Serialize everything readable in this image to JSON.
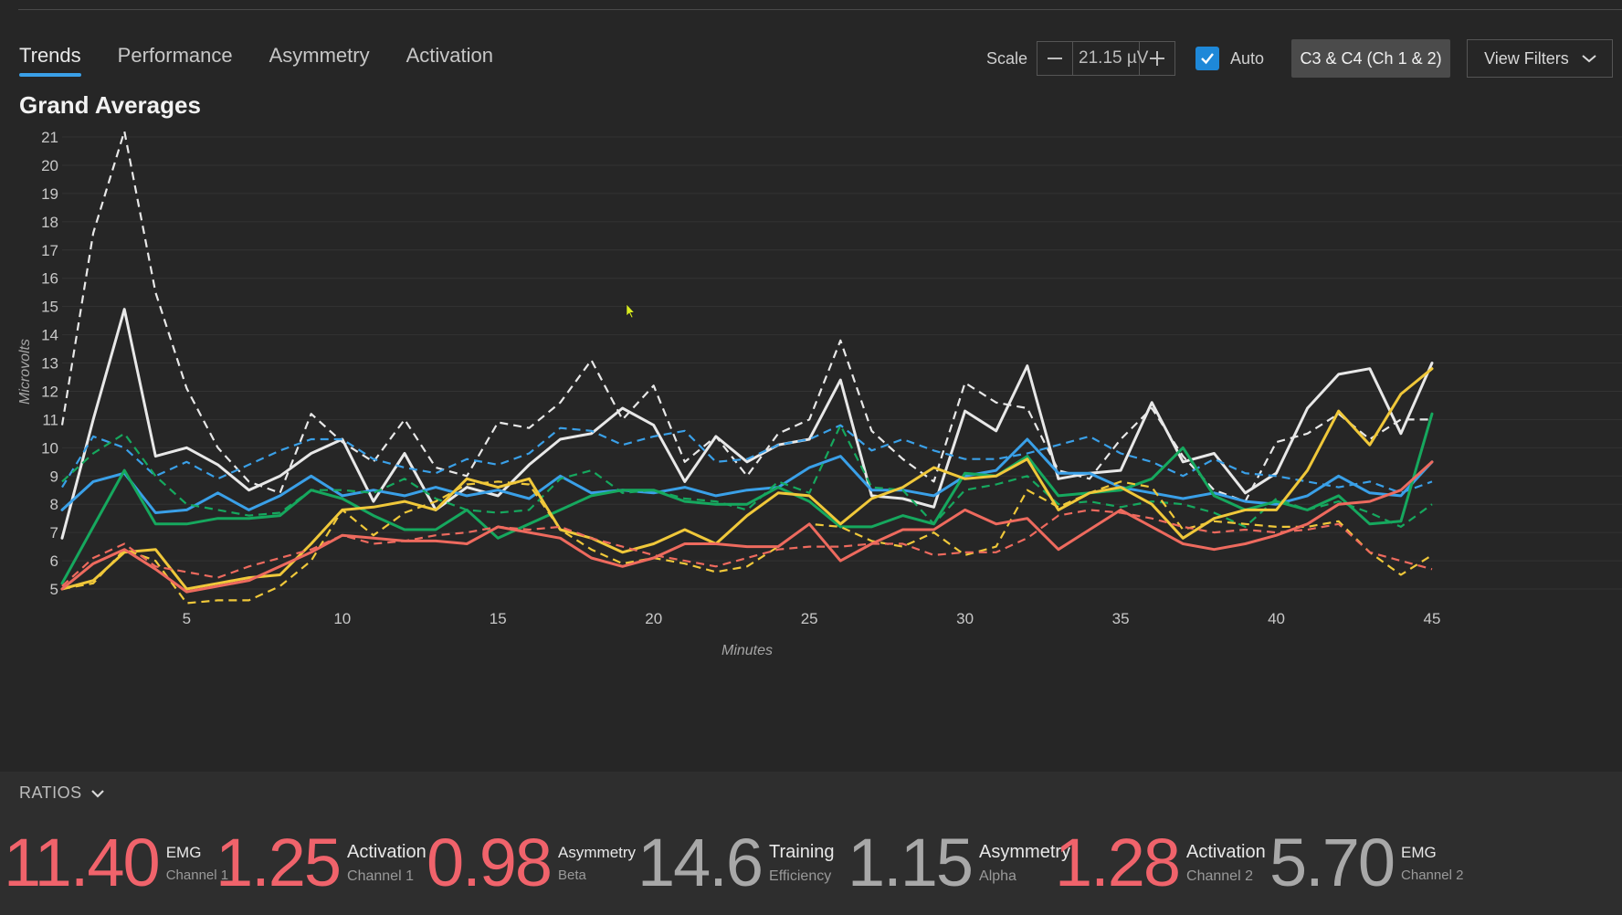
{
  "tabs": [
    {
      "label": "Trends",
      "active": true
    },
    {
      "label": "Performance",
      "active": false
    },
    {
      "label": "Asymmetry",
      "active": false
    },
    {
      "label": "Activation",
      "active": false
    }
  ],
  "toolbar": {
    "scale_label": "Scale",
    "scale_value": "21.15 µV",
    "auto_label": "Auto",
    "auto_checked": true,
    "channel_label": "C3 & C4 (Ch 1 & 2)",
    "filters_label": "View Filters"
  },
  "title": "Grand Averages",
  "chart_data": {
    "type": "line",
    "xlabel": "Minutes",
    "ylabel": "Microvolts",
    "xlim": [
      1,
      45
    ],
    "ylim": [
      5,
      21
    ],
    "x_ticks": [
      5,
      10,
      15,
      20,
      25,
      30,
      35,
      40,
      45
    ],
    "y_ticks": [
      5,
      6,
      7,
      8,
      9,
      10,
      11,
      12,
      13,
      14,
      15,
      16,
      17,
      18,
      19,
      20,
      21
    ],
    "grid": true,
    "x": [
      1,
      2,
      3,
      4,
      5,
      6,
      7,
      8,
      9,
      10,
      11,
      12,
      13,
      14,
      15,
      16,
      17,
      18,
      19,
      20,
      21,
      22,
      23,
      24,
      25,
      26,
      27,
      28,
      29,
      30,
      31,
      32,
      33,
      34,
      35,
      36,
      37,
      38,
      39,
      40,
      41,
      42,
      43,
      44,
      45
    ],
    "series": [
      {
        "color": "#e8e8e8",
        "style": "dashed",
        "values": [
          10.8,
          17.6,
          21.2,
          15.5,
          12.1,
          10.0,
          8.8,
          8.4,
          11.2,
          10.2,
          9.5,
          11.0,
          9.3,
          9.0,
          10.9,
          10.7,
          11.6,
          13.1,
          11.0,
          12.2,
          9.5,
          10.4,
          9.0,
          10.5,
          11.0,
          13.8,
          10.6,
          9.6,
          8.8,
          12.3,
          11.6,
          11.4,
          9.2,
          8.9,
          10.3,
          11.4,
          9.7,
          8.5,
          8.1,
          10.2,
          10.5,
          11.2,
          10.3,
          11.0,
          11.0
        ]
      },
      {
        "color": "#e8e8e8",
        "style": "solid",
        "values": [
          6.8,
          11.0,
          14.9,
          9.7,
          10.0,
          9.4,
          8.5,
          9.0,
          9.8,
          10.3,
          8.1,
          9.8,
          7.8,
          8.6,
          8.3,
          9.4,
          10.3,
          10.5,
          11.4,
          10.8,
          8.8,
          10.4,
          9.5,
          10.1,
          10.3,
          12.4,
          8.3,
          8.2,
          7.9,
          11.3,
          10.6,
          12.9,
          8.9,
          9.1,
          9.2,
          11.6,
          9.5,
          9.8,
          8.4,
          9.1,
          11.4,
          12.6,
          12.8,
          10.5,
          13.0
        ]
      },
      {
        "color": "#3aa0e8",
        "style": "dashed",
        "values": [
          8.6,
          10.4,
          10.0,
          9.0,
          9.5,
          8.9,
          9.4,
          9.9,
          10.3,
          10.3,
          9.6,
          9.3,
          9.1,
          9.6,
          9.4,
          9.8,
          10.7,
          10.6,
          10.1,
          10.4,
          10.6,
          9.5,
          9.6,
          10.1,
          10.3,
          10.8,
          9.9,
          10.3,
          9.9,
          9.6,
          9.6,
          9.8,
          10.1,
          10.4,
          9.8,
          9.5,
          9.0,
          9.6,
          9.1,
          9.0,
          8.8,
          8.6,
          8.8,
          8.4,
          8.8
        ]
      },
      {
        "color": "#3aa0e8",
        "style": "solid",
        "values": [
          7.8,
          8.8,
          9.1,
          7.7,
          7.8,
          8.4,
          7.8,
          8.3,
          9.0,
          8.3,
          8.5,
          8.3,
          8.6,
          8.3,
          8.5,
          8.2,
          9.0,
          8.4,
          8.5,
          8.4,
          8.6,
          8.3,
          8.5,
          8.6,
          9.3,
          9.7,
          8.5,
          8.5,
          8.3,
          9.0,
          9.2,
          10.3,
          9.1,
          9.1,
          8.6,
          8.4,
          8.2,
          8.4,
          8.1,
          8.0,
          8.3,
          9.0,
          8.4,
          8.3,
          9.5
        ]
      },
      {
        "color": "#16a85e",
        "style": "dashed",
        "values": [
          8.8,
          9.8,
          10.5,
          9.0,
          8.0,
          7.8,
          7.6,
          7.7,
          8.5,
          8.5,
          8.4,
          8.9,
          8.2,
          7.8,
          7.7,
          7.8,
          8.9,
          9.2,
          8.4,
          8.5,
          8.2,
          8.1,
          7.8,
          8.8,
          8.4,
          10.8,
          8.6,
          8.5,
          7.3,
          8.5,
          8.7,
          9.0,
          8.0,
          8.1,
          7.9,
          8.1,
          8.0,
          7.7,
          7.2,
          8.2,
          7.8,
          8.1,
          7.7,
          7.2,
          8.0
        ]
      },
      {
        "color": "#16a85e",
        "style": "solid",
        "values": [
          5.2,
          7.2,
          9.2,
          7.3,
          7.3,
          7.5,
          7.5,
          7.6,
          8.5,
          8.2,
          7.6,
          7.1,
          7.1,
          7.8,
          6.8,
          7.3,
          7.8,
          8.3,
          8.5,
          8.5,
          8.1,
          8.0,
          8.0,
          8.6,
          8.1,
          7.2,
          7.2,
          7.6,
          7.3,
          9.1,
          9.0,
          9.7,
          8.3,
          8.4,
          8.5,
          8.9,
          10.0,
          8.3,
          7.8,
          8.1,
          7.8,
          8.3,
          7.3,
          7.4,
          11.2
        ]
      },
      {
        "color": "#f0c83a",
        "style": "dashed",
        "values": [
          5.0,
          5.2,
          6.4,
          6.0,
          4.5,
          4.6,
          4.6,
          5.1,
          6.0,
          7.8,
          6.9,
          7.7,
          8.1,
          8.7,
          8.8,
          8.7,
          7.1,
          6.4,
          5.9,
          6.1,
          5.9,
          5.6,
          5.8,
          6.5,
          7.3,
          7.2,
          6.7,
          6.5,
          7.0,
          6.2,
          6.5,
          8.5,
          7.9,
          8.4,
          8.8,
          8.6,
          7.1,
          7.4,
          7.3,
          7.2,
          7.2,
          7.4,
          6.3,
          5.5,
          6.2
        ]
      },
      {
        "color": "#f0c83a",
        "style": "solid",
        "values": [
          5.0,
          5.3,
          6.3,
          6.4,
          5.0,
          5.2,
          5.4,
          5.5,
          6.6,
          7.8,
          7.9,
          8.1,
          7.8,
          8.9,
          8.6,
          8.9,
          7.1,
          6.8,
          6.3,
          6.6,
          7.1,
          6.6,
          7.6,
          8.4,
          8.3,
          7.3,
          8.2,
          8.6,
          9.3,
          8.9,
          9.0,
          9.6,
          7.8,
          8.4,
          8.6,
          8.0,
          6.8,
          7.5,
          7.8,
          7.8,
          9.2,
          11.3,
          10.1,
          11.9,
          12.8
        ]
      },
      {
        "color": "#ee6a5e",
        "style": "dashed",
        "values": [
          5.1,
          6.1,
          6.6,
          5.8,
          5.6,
          5.4,
          5.8,
          6.1,
          6.4,
          6.9,
          6.6,
          6.7,
          6.9,
          7.0,
          7.2,
          7.1,
          7.2,
          6.8,
          6.5,
          6.2,
          6.0,
          5.8,
          6.1,
          6.4,
          6.5,
          6.5,
          6.6,
          6.6,
          6.2,
          6.3,
          6.3,
          6.8,
          7.6,
          7.8,
          7.7,
          7.5,
          7.2,
          7.0,
          7.1,
          7.0,
          7.1,
          7.3,
          6.3,
          6.0,
          5.7
        ]
      },
      {
        "color": "#ee6a5e",
        "style": "solid",
        "values": [
          5.0,
          5.9,
          6.4,
          5.7,
          4.9,
          5.1,
          5.3,
          5.8,
          6.3,
          6.9,
          6.8,
          6.7,
          6.7,
          6.6,
          7.2,
          7.0,
          6.8,
          6.1,
          5.8,
          6.1,
          6.6,
          6.6,
          6.5,
          6.5,
          7.3,
          6.0,
          6.6,
          7.1,
          7.1,
          7.8,
          7.3,
          7.5,
          6.4,
          7.1,
          7.8,
          7.2,
          6.6,
          6.4,
          6.6,
          6.9,
          7.3,
          8.0,
          8.1,
          8.5,
          9.5
        ]
      }
    ]
  },
  "ratios": {
    "header": "RATIOS",
    "items": [
      {
        "value": "11.40",
        "line1": "EMG",
        "line2": "Channel 1",
        "color": "#f0636b"
      },
      {
        "value": "1.25",
        "line1": "Activation",
        "line2": "Channel 1",
        "color": "#f0636b"
      },
      {
        "value": "0.98",
        "line1": "Asymmetry",
        "line2": "Beta",
        "color": "#f0636b"
      },
      {
        "value": "14.6",
        "line1": "Training",
        "line2": "Efficiency",
        "color": "#a8a8a8"
      },
      {
        "value": "1.15",
        "line1": "Asymmetry",
        "line2": "Alpha",
        "color": "#a8a8a8"
      },
      {
        "value": "1.28",
        "line1": "Activation",
        "line2": "Channel 2",
        "color": "#f0636b"
      },
      {
        "value": "5.70",
        "line1": "EMG",
        "line2": "Channel 2",
        "color": "#a8a8a8"
      }
    ]
  }
}
